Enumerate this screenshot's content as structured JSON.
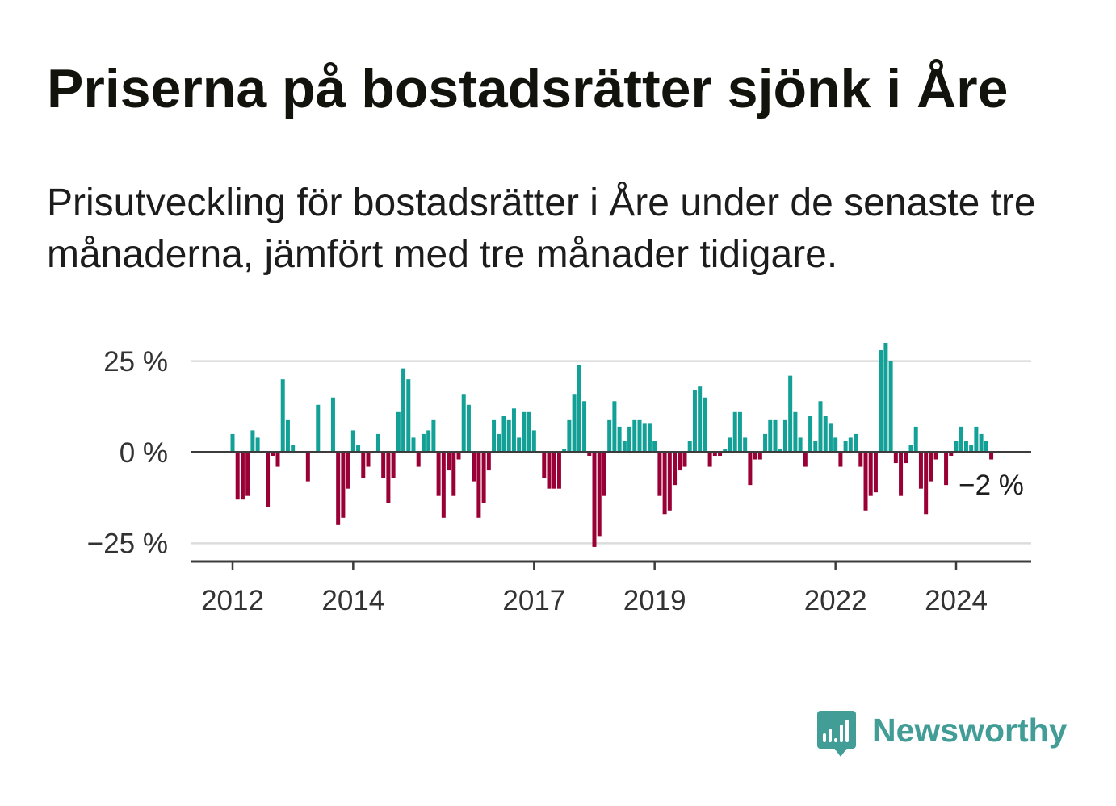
{
  "chart_data": {
    "type": "bar",
    "title": "Priserna på bostadsrätter sjönk i Åre",
    "subtitle": "Prisutveckling för bostadsrätter i Åre under de senaste tre månaderna, jämfört med tre månader tidigare.",
    "x": [
      "2012-01",
      "2012-02",
      "2012-03",
      "2012-04",
      "2012-05",
      "2012-06",
      "2012-07",
      "2012-08",
      "2012-09",
      "2012-10",
      "2012-11",
      "2012-12",
      "2013-01",
      "2013-02",
      "2013-03",
      "2013-04",
      "2013-05",
      "2013-06",
      "2013-07",
      "2013-08",
      "2013-09",
      "2013-10",
      "2013-11",
      "2013-12",
      "2014-01",
      "2014-02",
      "2014-03",
      "2014-04",
      "2014-05",
      "2014-06",
      "2014-07",
      "2014-08",
      "2014-09",
      "2014-10",
      "2014-11",
      "2014-12",
      "2015-01",
      "2015-02",
      "2015-03",
      "2015-04",
      "2015-05",
      "2015-06",
      "2015-07",
      "2015-08",
      "2015-09",
      "2015-10",
      "2015-11",
      "2015-12",
      "2016-01",
      "2016-02",
      "2016-03",
      "2016-04",
      "2016-05",
      "2016-06",
      "2016-07",
      "2016-08",
      "2016-09",
      "2016-10",
      "2016-11",
      "2016-12",
      "2017-01",
      "2017-02",
      "2017-03",
      "2017-04",
      "2017-05",
      "2017-06",
      "2017-07",
      "2017-08",
      "2017-09",
      "2017-10",
      "2017-11",
      "2017-12",
      "2018-01",
      "2018-02",
      "2018-03",
      "2018-04",
      "2018-05",
      "2018-06",
      "2018-07",
      "2018-08",
      "2018-09",
      "2018-10",
      "2018-11",
      "2018-12",
      "2019-01",
      "2019-02",
      "2019-03",
      "2019-04",
      "2019-05",
      "2019-06",
      "2019-07",
      "2019-08",
      "2019-09",
      "2019-10",
      "2019-11",
      "2019-12",
      "2020-01",
      "2020-02",
      "2020-03",
      "2020-04",
      "2020-05",
      "2020-06",
      "2020-07",
      "2020-08",
      "2020-09",
      "2020-10",
      "2020-11",
      "2020-12",
      "2021-01",
      "2021-02",
      "2021-03",
      "2021-04",
      "2021-05",
      "2021-06",
      "2021-07",
      "2021-08",
      "2021-09",
      "2021-10",
      "2021-11",
      "2021-12",
      "2022-01",
      "2022-02",
      "2022-03",
      "2022-04",
      "2022-05",
      "2022-06",
      "2022-07",
      "2022-08",
      "2022-09",
      "2022-10",
      "2022-11",
      "2022-12",
      "2023-01",
      "2023-02",
      "2023-03",
      "2023-04",
      "2023-05",
      "2023-06",
      "2023-07",
      "2023-08",
      "2023-09",
      "2023-10",
      "2023-11",
      "2023-12",
      "2024-01",
      "2024-02",
      "2024-03",
      "2024-04",
      "2024-05",
      "2024-06",
      "2024-07",
      "2024-08"
    ],
    "values": [
      5,
      -13,
      -13,
      -12,
      6,
      4,
      0,
      -15,
      -1,
      -4,
      20,
      9,
      2,
      0,
      0,
      -8,
      0,
      13,
      0,
      0,
      15,
      -20,
      -18,
      -10,
      6,
      2,
      -7,
      -4,
      0,
      5,
      -7,
      -14,
      -7,
      11,
      23,
      20,
      4,
      -4,
      5,
      6,
      9,
      -12,
      -18,
      -5,
      -12,
      -2,
      16,
      13,
      -8,
      -18,
      -14,
      -5,
      9,
      5,
      10,
      9,
      12,
      4,
      11,
      11,
      6,
      0,
      -7,
      -10,
      -10,
      -10,
      1,
      9,
      16,
      24,
      14,
      -1,
      -26,
      -23,
      -12,
      9,
      14,
      7,
      3,
      7,
      9,
      9,
      8,
      8,
      3,
      -12,
      -17,
      -16,
      -9,
      -5,
      -4,
      3,
      17,
      18,
      15,
      -4,
      -1,
      -1,
      1,
      4,
      11,
      11,
      4,
      -9,
      -2,
      -2,
      5,
      9,
      9,
      1,
      9,
      21,
      11,
      4,
      -4,
      10,
      3,
      14,
      10,
      8,
      4,
      -4,
      3,
      4,
      5,
      -4,
      -16,
      -12,
      -11,
      28,
      30,
      25,
      -3,
      -12,
      -3,
      2,
      7,
      -10,
      -17,
      -8,
      -2,
      0,
      -9,
      -1,
      3,
      7,
      3,
      2,
      7,
      5,
      3,
      -2
    ],
    "ylim": [
      -30,
      30
    ],
    "yticks": [
      {
        "value": 25,
        "label": "25 %"
      },
      {
        "value": 0,
        "label": "0 %"
      },
      {
        "value": -25,
        "label": "−25 %"
      }
    ],
    "xticks": [
      "2012",
      "2014",
      "2017",
      "2019",
      "2022",
      "2024"
    ],
    "annotation": {
      "x": "2024-08",
      "label": "−2 %"
    },
    "grid": true,
    "colors": {
      "positive": "#13a097",
      "negative": "#990035",
      "gridline": "#dcdcdc",
      "axis": "#3c3c3c"
    }
  },
  "branding": {
    "name": "Newsworthy",
    "color": "#429d97"
  }
}
